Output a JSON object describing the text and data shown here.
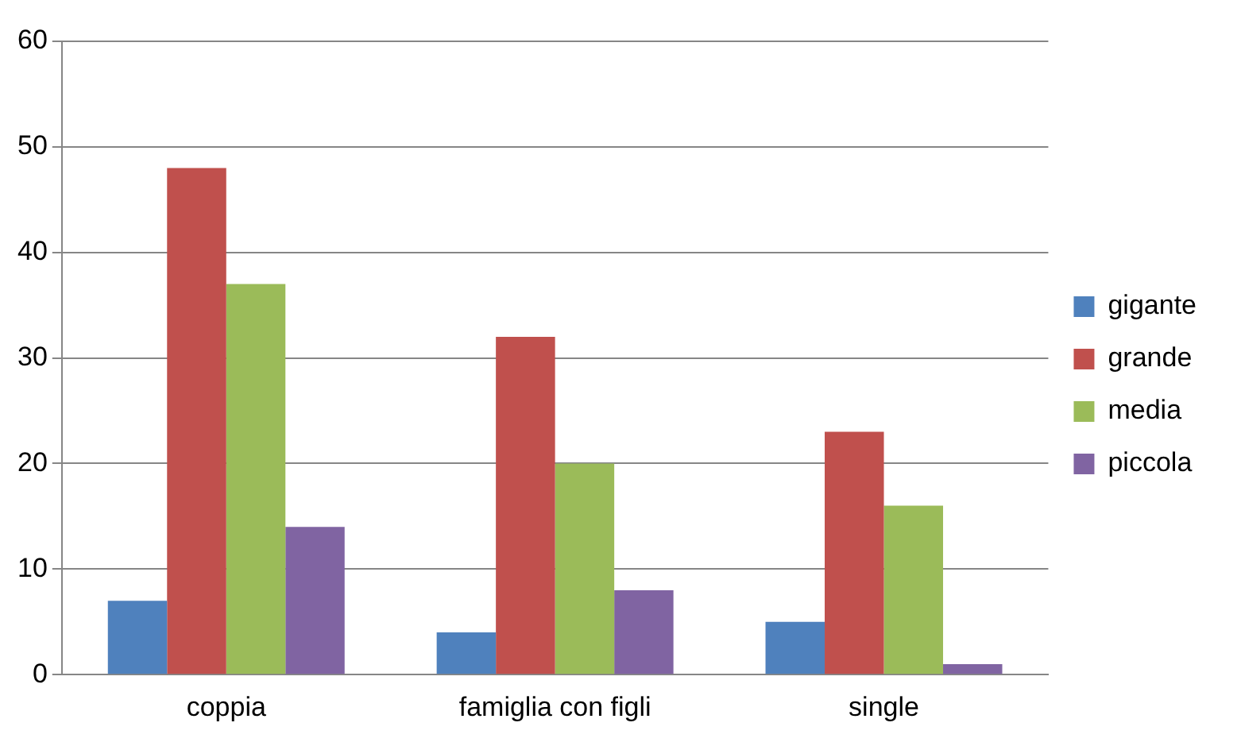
{
  "chart_data": {
    "type": "bar",
    "categories": [
      "coppia",
      "famiglia con figli",
      "single"
    ],
    "series": [
      {
        "name": "gigante",
        "color": "#4f81bd",
        "values": [
          7,
          4,
          5
        ]
      },
      {
        "name": "grande",
        "color": "#c0504d",
        "values": [
          48,
          32,
          23
        ]
      },
      {
        "name": "media",
        "color": "#9bbb59",
        "values": [
          37,
          20,
          16
        ]
      },
      {
        "name": "piccola",
        "color": "#8064a2",
        "values": [
          14,
          8,
          1
        ]
      }
    ],
    "ylim": [
      0,
      60
    ],
    "yticks": [
      0,
      10,
      20,
      30,
      40,
      50,
      60
    ],
    "grid": "y",
    "legend": "right"
  }
}
